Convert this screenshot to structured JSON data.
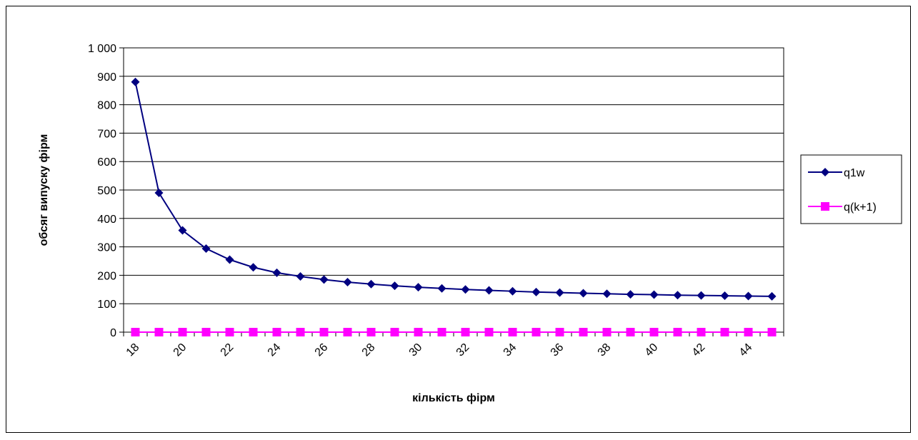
{
  "chart_data": {
    "type": "line",
    "title": "",
    "xlabel": "кількість фірм",
    "ylabel": "обсяг випуску фірм",
    "ylim": [
      0,
      1000
    ],
    "y_ticks": [
      0,
      100,
      200,
      300,
      400,
      500,
      600,
      700,
      800,
      900,
      1000
    ],
    "y_tick_labels": [
      "0",
      "100",
      "200",
      "300",
      "400",
      "500",
      "600",
      "700",
      "800",
      "900",
      "1 000"
    ],
    "x": [
      18,
      19,
      20,
      21,
      22,
      23,
      24,
      25,
      26,
      27,
      28,
      29,
      30,
      31,
      32,
      33,
      34,
      35,
      36,
      37,
      38,
      39,
      40,
      41,
      42,
      43,
      44,
      45
    ],
    "x_tick_labels": [
      "18",
      "20",
      "22",
      "24",
      "26",
      "28",
      "30",
      "32",
      "34",
      "36",
      "38",
      "40",
      "42",
      "44"
    ],
    "grid": "horizontal",
    "legend_position": "right",
    "series": [
      {
        "name": "q1w",
        "color": "#000080",
        "marker": "diamond",
        "values": [
          880,
          490,
          358,
          294,
          255,
          228,
          209,
          196,
          185,
          176,
          169,
          163,
          158,
          154,
          150,
          147,
          144,
          141,
          139,
          137,
          135,
          133,
          132,
          130,
          129,
          128,
          127,
          126
        ]
      },
      {
        "name": "q(k+1)",
        "color": "#FF00FF",
        "marker": "square",
        "values": [
          0,
          0,
          0,
          0,
          0,
          0,
          0,
          0,
          0,
          0,
          0,
          0,
          0,
          0,
          0,
          0,
          0,
          0,
          0,
          0,
          0,
          0,
          0,
          0,
          0,
          0,
          0,
          0
        ]
      }
    ]
  }
}
